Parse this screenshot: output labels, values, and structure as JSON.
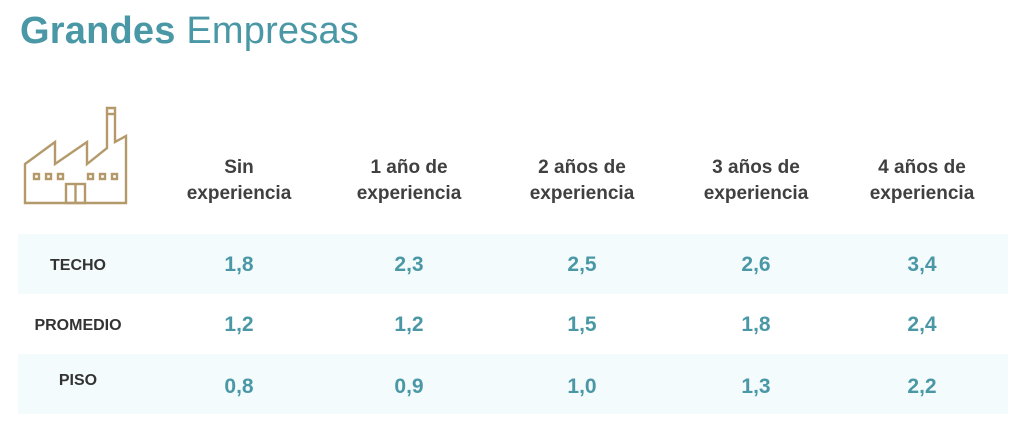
{
  "title": {
    "bold": "Grandes",
    "light": "Empresas"
  },
  "icon": "factory-icon",
  "colors": {
    "accent": "#4a98a6",
    "icon": "#b49a6a",
    "row_shade": "#f4fbfc",
    "label_text": "#333333"
  },
  "columns": [
    {
      "line1": "Sin",
      "line2": "experiencia"
    },
    {
      "line1": "1 año de",
      "line2": "experiencia"
    },
    {
      "line1": "2 años de",
      "line2": "experiencia"
    },
    {
      "line1": "3 años de",
      "line2": "experiencia"
    },
    {
      "line1": "4 años de",
      "line2": "experiencia"
    }
  ],
  "rows": [
    {
      "label": "TECHO",
      "values": [
        "1,8",
        "2,3",
        "2,5",
        "2,6",
        "3,4"
      ]
    },
    {
      "label": "PROMEDIO",
      "values": [
        "1,2",
        "1,2",
        "1,5",
        "1,8",
        "2,4"
      ]
    },
    {
      "label": "PISO",
      "values": [
        "0,8",
        "0,9",
        "1,0",
        "1,3",
        "2,2"
      ]
    }
  ]
}
